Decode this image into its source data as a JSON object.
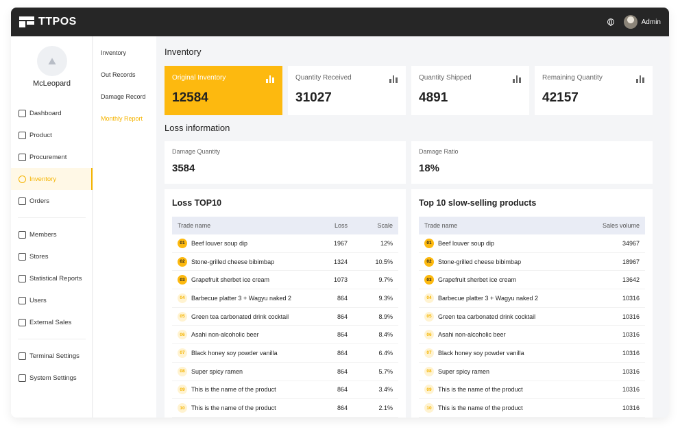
{
  "app": {
    "logo_text": "TTPOS",
    "user_name": "Admin"
  },
  "store": {
    "name": "McLeopard"
  },
  "nav": [
    {
      "label": "Dashboard",
      "icon": "dashboard-icon",
      "active": false
    },
    {
      "label": "Product",
      "icon": "box-icon",
      "active": false
    },
    {
      "label": "Procurement",
      "icon": "cart-icon",
      "active": false
    },
    {
      "label": "Inventory",
      "icon": "inventory-icon",
      "active": true
    },
    {
      "label": "Orders",
      "icon": "orders-icon",
      "active": false
    },
    {
      "label": "Members",
      "icon": "members-icon",
      "active": false
    },
    {
      "label": "Stores",
      "icon": "store-icon",
      "active": false
    },
    {
      "label": "Statistical Reports",
      "icon": "report-icon",
      "active": false
    },
    {
      "label": "Users",
      "icon": "users-icon",
      "active": false
    },
    {
      "label": "External Sales",
      "icon": "external-sales-icon",
      "active": false
    },
    {
      "label": "Terminal Settings",
      "icon": "terminal-icon",
      "active": false
    },
    {
      "label": "System Settings",
      "icon": "gear-icon",
      "active": false
    }
  ],
  "subnav": [
    {
      "label": "Inventory",
      "active": false
    },
    {
      "label": "Out Records",
      "active": false
    },
    {
      "label": "Damage Record",
      "active": false
    },
    {
      "label": "Monthly Report",
      "active": true
    }
  ],
  "main": {
    "title": "Inventory",
    "stats": [
      {
        "label": "Original Inventory",
        "value": "12584"
      },
      {
        "label": "Quantity Received",
        "value": "31027"
      },
      {
        "label": "Quantity Shipped",
        "value": "4891"
      },
      {
        "label": "Remaining Quantity",
        "value": "42157"
      }
    ],
    "loss_title": "Loss information",
    "loss_cards": [
      {
        "label": "Damage Quantity",
        "value": "3584"
      },
      {
        "label": "Damage Ratio",
        "value": "18%"
      }
    ],
    "loss_table": {
      "title": "Loss TOP10",
      "headers": {
        "name": "Trade name",
        "loss": "Loss",
        "scale": "Scale"
      },
      "rows": [
        {
          "rank": "01",
          "name": "Beef louver soup dip",
          "loss": "1967",
          "scale": "12%"
        },
        {
          "rank": "02",
          "name": "Stone-grilled cheese bibimbap",
          "loss": "1324",
          "scale": "10.5%"
        },
        {
          "rank": "03",
          "name": "Grapefruit sherbet ice cream",
          "loss": "1073",
          "scale": "9.7%"
        },
        {
          "rank": "04",
          "name": "Barbecue platter 3 + Wagyu naked 2",
          "loss": "864",
          "scale": "9.3%"
        },
        {
          "rank": "05",
          "name": "Green tea carbonated drink cocktail",
          "loss": "864",
          "scale": "8.9%"
        },
        {
          "rank": "06",
          "name": "Asahi non-alcoholic beer",
          "loss": "864",
          "scale": "8.4%"
        },
        {
          "rank": "07",
          "name": "Black honey soy powder vanilla",
          "loss": "864",
          "scale": "6.4%"
        },
        {
          "rank": "08",
          "name": "Super spicy ramen",
          "loss": "864",
          "scale": "5.7%"
        },
        {
          "rank": "09",
          "name": "This is the name of the product",
          "loss": "864",
          "scale": "3.4%"
        },
        {
          "rank": "10",
          "name": "This is the name of the product",
          "loss": "864",
          "scale": "2.1%"
        }
      ]
    },
    "slow_table": {
      "title": "Top 10 slow-selling products",
      "headers": {
        "name": "Trade name",
        "volume": "Sales volume"
      },
      "rows": [
        {
          "rank": "01",
          "name": "Beef louver soup dip",
          "volume": "34967"
        },
        {
          "rank": "02",
          "name": "Stone-grilled cheese bibimbap",
          "volume": "18967"
        },
        {
          "rank": "03",
          "name": "Grapefruit sherbet ice cream",
          "volume": "13642"
        },
        {
          "rank": "04",
          "name": "Barbecue platter 3 + Wagyu naked 2",
          "volume": "10316"
        },
        {
          "rank": "05",
          "name": "Green tea carbonated drink cocktail",
          "volume": "10316"
        },
        {
          "rank": "06",
          "name": "Asahi non-alcoholic beer",
          "volume": "10316"
        },
        {
          "rank": "07",
          "name": "Black honey soy powder vanilla",
          "volume": "10316"
        },
        {
          "rank": "08",
          "name": "Super spicy ramen",
          "volume": "10316"
        },
        {
          "rank": "09",
          "name": "This is the name of the product",
          "volume": "10316"
        },
        {
          "rank": "10",
          "name": "This is the name of the product",
          "volume": "10316"
        }
      ]
    }
  },
  "colors": {
    "accent": "#fdb90f",
    "topbar": "#262626",
    "table_header": "#e9ecf5"
  }
}
